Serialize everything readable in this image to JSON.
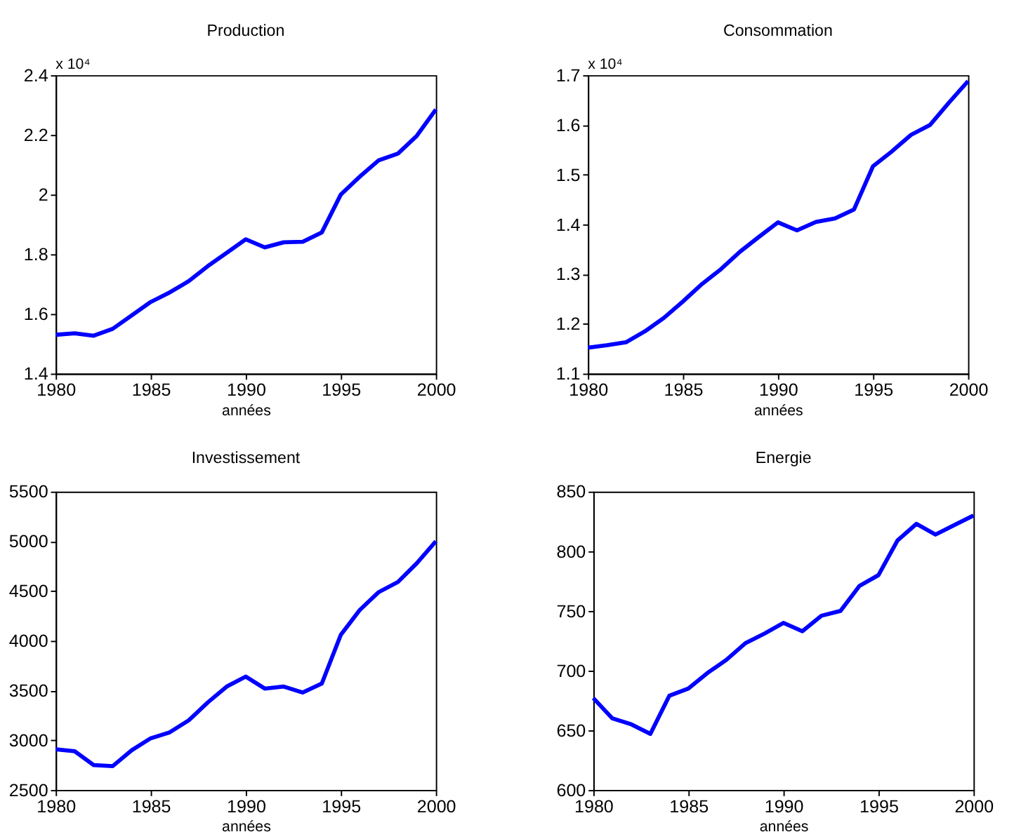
{
  "chart_data": [
    {
      "type": "line",
      "title": "Production",
      "xlabel": "années",
      "annotations": [
        "x 10⁴"
      ],
      "x": [
        1980,
        1981,
        1982,
        1983,
        1984,
        1985,
        1986,
        1987,
        1988,
        1989,
        1990,
        1991,
        1992,
        1993,
        1994,
        1995,
        1996,
        1997,
        1998,
        1999,
        2000
      ],
      "series": [
        {
          "color": "#0000ff",
          "values": [
            1.53,
            1.535,
            1.527,
            1.55,
            1.595,
            1.64,
            1.672,
            1.71,
            1.76,
            1.805,
            1.85,
            1.823,
            1.84,
            1.842,
            1.873,
            2.0,
            2.06,
            2.115,
            2.137,
            2.197,
            2.285
          ]
        }
      ],
      "xlim": [
        1980,
        2000
      ],
      "xticks": [
        1980,
        1985,
        1990,
        1995,
        2000
      ],
      "ylim": [
        1.4,
        2.4
      ],
      "yticks": [
        1.4,
        1.6,
        1.8,
        2,
        2.2,
        2.4
      ],
      "grid": false
    },
    {
      "type": "line",
      "title": "Consommation",
      "xlabel": "années",
      "annotations": [
        "x 10⁴"
      ],
      "x": [
        1980,
        1981,
        1982,
        1983,
        1984,
        1985,
        1986,
        1987,
        1988,
        1989,
        1990,
        1991,
        1992,
        1993,
        1994,
        1995,
        1996,
        1997,
        1998,
        1999,
        2000
      ],
      "series": [
        {
          "color": "#0000ff",
          "values": [
            1.152,
            1.157,
            1.163,
            1.185,
            1.212,
            1.245,
            1.28,
            1.31,
            1.345,
            1.375,
            1.404,
            1.388,
            1.405,
            1.412,
            1.43,
            1.517,
            1.547,
            1.58,
            1.6,
            1.645,
            1.688
          ]
        }
      ],
      "xlim": [
        1980,
        2000
      ],
      "xticks": [
        1980,
        1985,
        1990,
        1995,
        2000
      ],
      "ylim": [
        1.1,
        1.7
      ],
      "yticks": [
        1.1,
        1.2,
        1.3,
        1.4,
        1.5,
        1.6,
        1.7
      ],
      "grid": false
    },
    {
      "type": "line",
      "title": "Investissement",
      "xlabel": "années",
      "x": [
        1980,
        1981,
        1982,
        1983,
        1984,
        1985,
        1986,
        1987,
        1988,
        1989,
        1990,
        1991,
        1992,
        1993,
        1994,
        1995,
        1996,
        1997,
        1998,
        1999,
        2000
      ],
      "series": [
        {
          "color": "#0000ff",
          "values": [
            2910,
            2890,
            2750,
            2740,
            2900,
            3020,
            3080,
            3200,
            3380,
            3540,
            3640,
            3520,
            3540,
            3480,
            3570,
            4060,
            4310,
            4490,
            4590,
            4780,
            5000
          ]
        }
      ],
      "xlim": [
        1980,
        2000
      ],
      "xticks": [
        1980,
        1985,
        1990,
        1995,
        2000
      ],
      "ylim": [
        2500,
        5500
      ],
      "yticks": [
        2500,
        3000,
        3500,
        4000,
        4500,
        5000,
        5500
      ],
      "grid": false
    },
    {
      "type": "line",
      "title": "Energie",
      "xlabel": "années",
      "x": [
        1980,
        1981,
        1982,
        1983,
        1984,
        1985,
        1986,
        1987,
        1988,
        1989,
        1990,
        1991,
        1992,
        1993,
        1994,
        1995,
        1996,
        1997,
        1998,
        1999,
        2000
      ],
      "series": [
        {
          "color": "#0000ff",
          "values": [
            677,
            660,
            655,
            647,
            679,
            685,
            698,
            709,
            723,
            731,
            740,
            733,
            746,
            750,
            771,
            780,
            809,
            823,
            814,
            822,
            830
          ]
        }
      ],
      "xlim": [
        1980,
        2000
      ],
      "xticks": [
        1980,
        1985,
        1990,
        1995,
        2000
      ],
      "ylim": [
        600,
        850
      ],
      "yticks": [
        600,
        650,
        700,
        750,
        800,
        850
      ],
      "grid": false
    }
  ]
}
